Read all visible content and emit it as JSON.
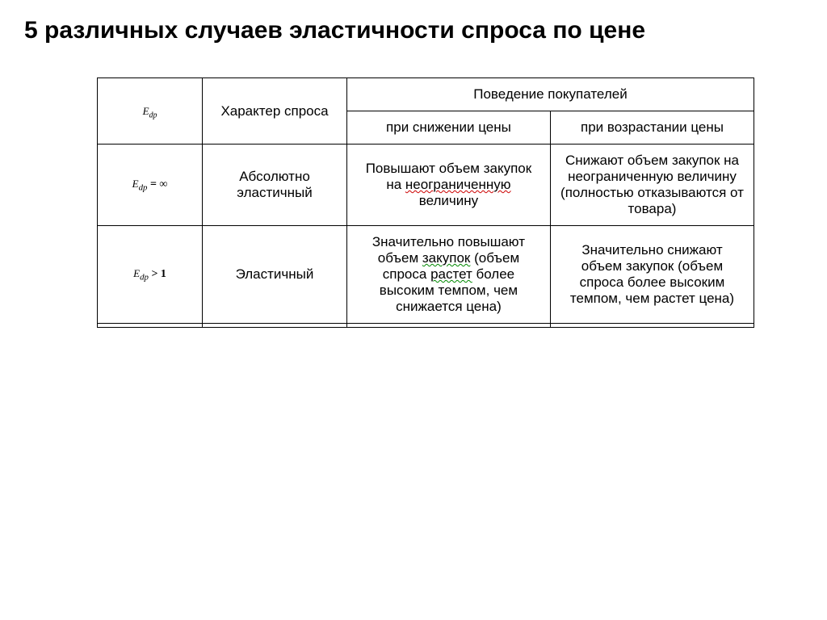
{
  "title": "5 различных случаев эластичности спроса по цене",
  "headers": {
    "edp_symbol": "E",
    "edp_sub": "dp",
    "char": "Характер спроса",
    "behavior": "Поведение покупателей",
    "sub1": "при снижении цены",
    "sub2": "при возрастании цены"
  },
  "rows": [
    {
      "formula_sym": "E",
      "formula_sub": "dp",
      "formula_op": " = ∞",
      "char": "Абсолютно эластичный",
      "b1_pre": "Повышают объем закупок на ",
      "b1_mark": "неограниченную",
      "b1_post": " величину",
      "b2": "Снижают объем закупок на неограниченную величину (полностью отказываются от товара)"
    },
    {
      "formula_sym": "E",
      "formula_sub": "dp",
      "formula_op": " > 1",
      "char": "Эластичный",
      "b1_pre": "Значительно повышают объем ",
      "b1_mark1": "закупок",
      "b1_mid": " (объем спроса ",
      "b1_mark2": "растет",
      "b1_post": " более высоким темпом, чем снижается цена)",
      "b2": "Значительно снижают объем закупок (объем спроса более высоким темпом, чем растет цена)"
    }
  ],
  "colors": {
    "text": "#000000",
    "bg": "#ffffff",
    "border": "#000000",
    "squiggle_red": "#cc0000",
    "squiggle_green": "#008800"
  },
  "fonts": {
    "title_size": 30,
    "cell_size": 17,
    "formula_size": 13
  }
}
